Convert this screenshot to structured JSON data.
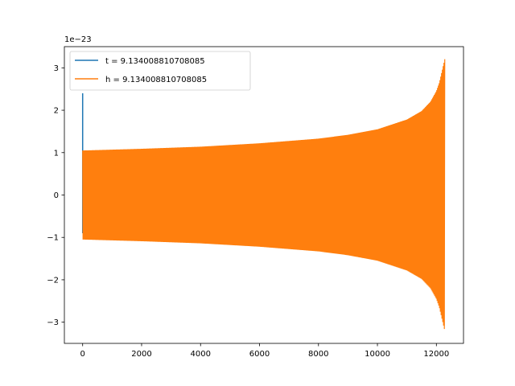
{
  "chart_data": {
    "type": "line",
    "title": "",
    "xlabel": "",
    "ylabel": "",
    "y_offset_label": "1e−23",
    "xlim": [
      -620,
      12920
    ],
    "ylim": [
      -3.5,
      3.5
    ],
    "x_ticks": [
      0,
      2000,
      4000,
      6000,
      8000,
      10000,
      12000
    ],
    "x_tick_labels": [
      "0",
      "2000",
      "4000",
      "6000",
      "8000",
      "10000",
      "12000"
    ],
    "y_ticks": [
      -3,
      -2,
      -1,
      0,
      1,
      2,
      3
    ],
    "y_tick_labels": [
      "−3",
      "−2",
      "−1",
      "0",
      "1",
      "2",
      "3"
    ],
    "grid": false,
    "legend_position": "upper left",
    "series": [
      {
        "name": "t = 9.134008810708085",
        "color": "#1f77b4",
        "style": "spike",
        "x": [
          0,
          0,
          0,
          0
        ],
        "y": [
          -0.9,
          2.4,
          -0.9,
          1.05
        ]
      },
      {
        "name": "h = 9.134008810708085",
        "color": "#ff7f0e",
        "style": "chirp-envelope",
        "x": [
          0,
          2000,
          4000,
          6000,
          8000,
          9000,
          10000,
          11000,
          11500,
          11800,
          12000,
          12100,
          12200,
          12290
        ],
        "upper": [
          1.05,
          1.09,
          1.14,
          1.22,
          1.33,
          1.42,
          1.55,
          1.78,
          1.98,
          2.2,
          2.45,
          2.65,
          2.95,
          3.22
        ],
        "lower": [
          -1.05,
          -1.09,
          -1.14,
          -1.22,
          -1.33,
          -1.42,
          -1.55,
          -1.78,
          -1.98,
          -2.2,
          -2.45,
          -2.65,
          -2.95,
          -3.22
        ]
      }
    ]
  },
  "legend": {
    "items": [
      {
        "label": "t = 9.134008810708085",
        "color": "#1f77b4"
      },
      {
        "label": "h = 9.134008810708085",
        "color": "#ff7f0e"
      }
    ]
  }
}
